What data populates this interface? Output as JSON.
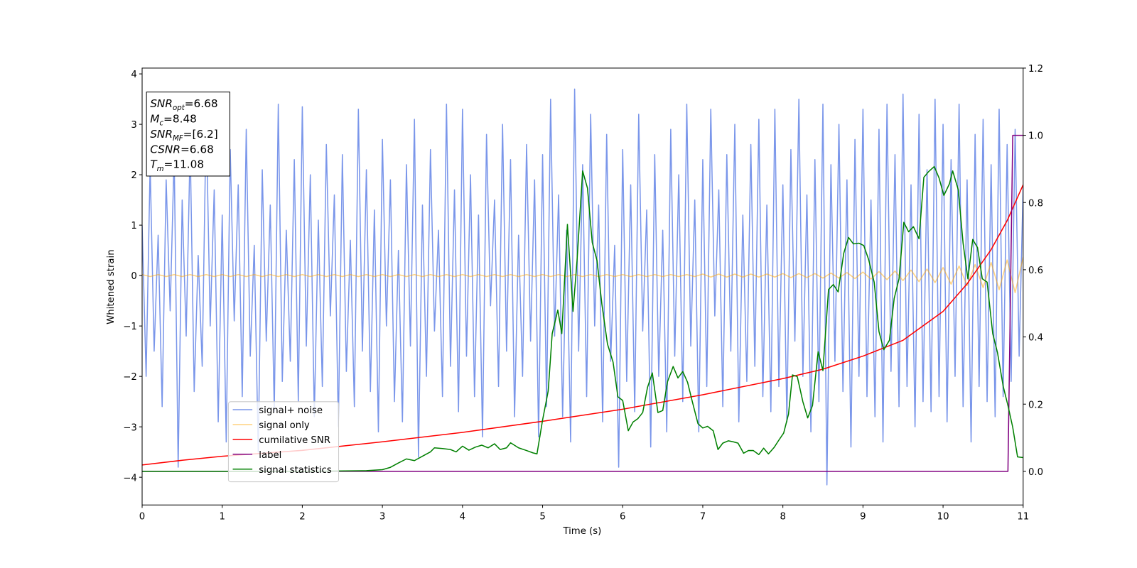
{
  "chart_data": {
    "type": "line",
    "xlabel": "Time (s)",
    "ylabel": "Whitened strain",
    "xlim": [
      0,
      11
    ],
    "ylim": [
      -4.55,
      4.115
    ],
    "y2lim": [
      -0.1,
      1.2
    ],
    "xticks": [
      0,
      1,
      2,
      3,
      4,
      5,
      6,
      7,
      8,
      9,
      10,
      11
    ],
    "yticks": [
      {
        "value": -4,
        "label": "−4"
      },
      {
        "value": -3,
        "label": "−3"
      },
      {
        "value": -2,
        "label": "−2"
      },
      {
        "value": -1,
        "label": "−1"
      },
      0,
      1,
      2,
      3,
      4
    ],
    "y2ticks": [
      {
        "value": 0,
        "label": "0.0"
      },
      0.2,
      0.4,
      0.6,
      0.8,
      {
        "value": 1,
        "label": "1.0"
      },
      1.2
    ],
    "legend": "lower left",
    "annotation": [
      {
        "symbol": "SNR",
        "subscript": "opt",
        "text": "=6.68"
      },
      {
        "symbol": "M",
        "subscript": "c",
        "text": "=8.48"
      },
      {
        "symbol": "SNR",
        "subscript": "MF",
        "text": "=[6.2]"
      },
      {
        "symbol": "CSNR",
        "subscript": "",
        "text": "=6.68"
      },
      {
        "symbol": "T",
        "subscript": "m",
        "text": "=11.08"
      }
    ],
    "series": [
      {
        "name": "signal+ noise",
        "color": "#4169e1",
        "opacity": 0.7,
        "x": [
          0,
          0.05,
          0.1,
          0.15,
          0.2,
          0.25,
          0.3,
          0.35,
          0.4,
          0.45,
          0.5,
          0.55,
          0.6,
          0.65,
          0.7,
          0.75,
          0.8,
          0.85,
          0.9,
          0.95,
          1,
          1.05,
          1.1,
          1.15,
          1.2,
          1.25,
          1.3,
          1.35,
          1.4,
          1.45,
          1.5,
          1.55,
          1.6,
          1.65,
          1.7,
          1.75,
          1.8,
          1.85,
          1.9,
          1.95,
          2,
          2.05,
          2.1,
          2.15,
          2.2,
          2.25,
          2.3,
          2.35,
          2.4,
          2.45,
          2.5,
          2.55,
          2.6,
          2.65,
          2.7,
          2.75,
          2.8,
          2.85,
          2.9,
          2.95,
          3,
          3.05,
          3.1,
          3.15,
          3.2,
          3.25,
          3.3,
          3.35,
          3.4,
          3.45,
          3.5,
          3.55,
          3.6,
          3.65,
          3.7,
          3.75,
          3.8,
          3.85,
          3.9,
          3.95,
          4,
          4.05,
          4.1,
          4.15,
          4.2,
          4.25,
          4.3,
          4.35,
          4.4,
          4.45,
          4.5,
          4.55,
          4.6,
          4.65,
          4.7,
          4.75,
          4.8,
          4.85,
          4.9,
          4.95,
          5,
          5.05,
          5.1,
          5.15,
          5.2,
          5.25,
          5.3,
          5.35,
          5.4,
          5.45,
          5.5,
          5.55,
          5.6,
          5.65,
          5.7,
          5.75,
          5.8,
          5.85,
          5.9,
          5.95,
          6,
          6.05,
          6.1,
          6.15,
          6.2,
          6.25,
          6.3,
          6.35,
          6.4,
          6.45,
          6.5,
          6.55,
          6.6,
          6.65,
          6.7,
          6.75,
          6.8,
          6.85,
          6.9,
          6.95,
          7,
          7.05,
          7.1,
          7.15,
          7.2,
          7.25,
          7.3,
          7.35,
          7.4,
          7.45,
          7.5,
          7.55,
          7.6,
          7.65,
          7.7,
          7.75,
          7.8,
          7.85,
          7.9,
          7.95,
          8,
          8.05,
          8.1,
          8.15,
          8.2,
          8.25,
          8.3,
          8.35,
          8.4,
          8.45,
          8.5,
          8.55,
          8.6,
          8.65,
          8.7,
          8.75,
          8.8,
          8.85,
          8.9,
          8.95,
          9,
          9.05,
          9.1,
          9.15,
          9.2,
          9.25,
          9.3,
          9.35,
          9.4,
          9.45,
          9.5,
          9.55,
          9.6,
          9.65,
          9.7,
          9.75,
          9.8,
          9.85,
          9.9,
          9.95,
          10,
          10.05,
          10.1,
          10.15,
          10.2,
          10.25,
          10.3,
          10.35,
          10.4,
          10.45,
          10.5,
          10.55,
          10.6,
          10.65,
          10.7,
          10.75,
          10.8,
          10.85,
          10.9,
          10.95,
          11
        ],
        "values": [
          1.0,
          -2.0,
          2.2,
          -1.5,
          0.8,
          -2.6,
          1.9,
          -0.7,
          2.4,
          -3.8,
          1.5,
          -1.2,
          2.6,
          -2.3,
          0.4,
          -1.8,
          3.2,
          -1.0,
          1.7,
          -2.9,
          1.2,
          -3.3,
          2.5,
          -0.9,
          1.8,
          -2.4,
          2.9,
          -1.6,
          0.6,
          -3.5,
          2.1,
          -1.3,
          1.4,
          -2.7,
          3.4,
          -2.1,
          0.9,
          -1.7,
          2.3,
          -2.5,
          3.35,
          -1.4,
          2.0,
          -2.8,
          1.1,
          -2.2,
          2.6,
          -0.8,
          1.6,
          -3.0,
          2.4,
          -1.9,
          0.7,
          -2.6,
          3.3,
          -1.5,
          2.1,
          -2.3,
          1.3,
          -3.1,
          2.7,
          -1.0,
          1.9,
          -2.5,
          0.5,
          -2.9,
          2.2,
          -1.4,
          3.1,
          -3.6,
          1.4,
          -2.0,
          2.5,
          -1.1,
          0.9,
          -2.4,
          3.4,
          -1.8,
          1.7,
          -2.7,
          3.3,
          -1.6,
          2.0,
          -2.4,
          1.2,
          -3.2,
          2.8,
          -0.6,
          1.5,
          -2.2,
          3.0,
          -1.5,
          2.3,
          -2.8,
          0.8,
          -2.0,
          2.6,
          -1.3,
          1.9,
          -3.2,
          2.4,
          -2.6,
          3.5,
          -1.2,
          1.6,
          -2.8,
          0.9,
          -3.3,
          3.7,
          -1.5,
          2.2,
          -2.4,
          3.2,
          -1.0,
          1.4,
          -2.9,
          2.8,
          -1.7,
          0.6,
          -3.8,
          2.5,
          -2.1,
          1.8,
          -2.7,
          3.2,
          -1.1,
          1.3,
          -3.4,
          2.4,
          -2.0,
          0.9,
          -3.1,
          2.9,
          -1.6,
          2.0,
          -2.5,
          3.4,
          -1.4,
          1.5,
          -3.1,
          2.3,
          -2.2,
          3.3,
          -0.8,
          1.7,
          -2.6,
          2.4,
          -1.5,
          3.0,
          -2.9,
          1.2,
          -2.1,
          2.6,
          -1.8,
          3.1,
          -2.4,
          1.4,
          -2.7,
          3.3,
          -2.2,
          1.8,
          -2.9,
          2.5,
          -1.3,
          3.5,
          -2.0,
          1.6,
          -3.1,
          2.3,
          -2.5,
          3.4,
          -4.15,
          2.2,
          -1.7,
          3.0,
          -2.3,
          1.9,
          -3.4,
          2.7,
          -2.0,
          3.3,
          -2.4,
          1.5,
          -2.8,
          2.9,
          -3.3,
          3.4,
          -1.9,
          2.4,
          -2.6,
          3.6,
          -2.2,
          1.8,
          -3.0,
          3.2,
          -2.5,
          2.1,
          -2.7,
          3.5,
          -2.4,
          3.0,
          -2.9,
          2.3,
          -2.0,
          3.4,
          -2.6,
          1.9,
          -3.3,
          2.8,
          -2.2,
          3.1,
          -2.5,
          2.2,
          -2.8,
          3.3,
          -2.4,
          2.6,
          -2.1,
          2.9,
          -1.6,
          1.8
        ]
      },
      {
        "name": "signal only",
        "color": "#ffa500",
        "opacity": 0.5,
        "x": [
          0,
          0.1,
          0.2,
          0.3,
          0.4,
          0.5,
          0.6,
          0.7,
          0.8,
          0.9,
          1,
          1.1,
          1.2,
          1.3,
          1.4,
          1.5,
          1.6,
          1.7,
          1.8,
          1.9,
          2,
          2.1,
          2.2,
          2.3,
          2.4,
          2.5,
          2.6,
          2.7,
          2.8,
          2.9,
          3,
          3.1,
          3.2,
          3.3,
          3.4,
          3.5,
          3.6,
          3.7,
          3.8,
          3.9,
          4,
          4.1,
          4.2,
          4.3,
          4.4,
          4.5,
          4.6,
          4.7,
          4.8,
          4.9,
          5,
          5.1,
          5.2,
          5.3,
          5.4,
          5.5,
          5.6,
          5.7,
          5.8,
          5.9,
          6,
          6.1,
          6.2,
          6.3,
          6.4,
          6.5,
          6.6,
          6.7,
          6.8,
          6.9,
          7,
          7.1,
          7.2,
          7.3,
          7.4,
          7.5,
          7.6,
          7.7,
          7.8,
          7.9,
          8,
          8.1,
          8.2,
          8.3,
          8.4,
          8.5,
          8.6,
          8.7,
          8.8,
          8.9,
          9,
          9.1,
          9.2,
          9.3,
          9.4,
          9.5,
          9.6,
          9.7,
          9.8,
          9.9,
          10,
          10.1,
          10.2,
          10.3,
          10.4,
          10.5,
          10.6,
          10.7,
          10.8,
          10.9,
          11
        ],
        "values": [
          0.02,
          -0.02,
          0.02,
          -0.02,
          0.02,
          -0.02,
          0.02,
          -0.02,
          0.02,
          -0.02,
          0.02,
          -0.02,
          0.02,
          -0.02,
          0.02,
          -0.02,
          0.02,
          -0.02,
          0.02,
          -0.02,
          0.02,
          -0.02,
          0.02,
          -0.02,
          0.02,
          -0.02,
          0.02,
          -0.02,
          0.02,
          -0.02,
          0.02,
          -0.02,
          0.02,
          -0.02,
          0.02,
          -0.02,
          0.02,
          -0.02,
          0.02,
          -0.02,
          0.02,
          -0.02,
          0.02,
          -0.02,
          0.02,
          -0.02,
          0.02,
          -0.02,
          0.02,
          -0.02,
          0.02,
          -0.02,
          0.02,
          -0.02,
          0.02,
          -0.02,
          0.02,
          -0.02,
          0.02,
          -0.02,
          0.02,
          -0.02,
          0.02,
          -0.02,
          0.02,
          -0.02,
          0.02,
          -0.02,
          0.02,
          -0.02,
          0.03,
          -0.03,
          0.03,
          -0.03,
          0.03,
          -0.03,
          0.03,
          -0.03,
          0.03,
          -0.03,
          0.04,
          -0.04,
          0.04,
          -0.04,
          0.04,
          -0.05,
          0.05,
          -0.05,
          0.06,
          -0.06,
          0.07,
          -0.07,
          0.08,
          -0.08,
          0.09,
          -0.1,
          0.11,
          -0.12,
          0.13,
          -0.14,
          0.16,
          -0.17,
          0.19,
          -0.2,
          0.22,
          -0.24,
          0.26,
          -0.28,
          0.31,
          -0.34,
          0.37
        ]
      },
      {
        "name": "cumilative SNR",
        "color": "#ff0000",
        "axis": "y2",
        "x": [
          0,
          0.5,
          1,
          2,
          3,
          4,
          5,
          6,
          7,
          8,
          8.5,
          9,
          9.5,
          10,
          10.3,
          10.6,
          10.8,
          11
        ],
        "values": [
          0.019,
          0.033,
          0.045,
          0.0625,
          0.088,
          0.116,
          0.149,
          0.185,
          0.228,
          0.276,
          0.304,
          0.343,
          0.39,
          0.476,
          0.558,
          0.66,
          0.746,
          0.853
        ]
      },
      {
        "name": "label",
        "color": "#800080",
        "axis": "y2",
        "x": [
          0,
          10.81,
          10.87,
          11
        ],
        "values": [
          0,
          0,
          1,
          1
        ]
      },
      {
        "name": "signal statistics",
        "color": "#008000",
        "axis": "y2",
        "x": [
          0,
          1,
          2,
          2.8,
          3,
          3.1,
          3.2,
          3.3,
          3.4,
          3.5,
          3.6,
          3.65,
          3.75,
          3.85,
          3.92,
          4,
          4.08,
          4.16,
          4.24,
          4.32,
          4.4,
          4.47,
          4.55,
          4.6,
          4.7,
          4.8,
          4.88,
          4.93,
          5,
          5.07,
          5.12,
          5.19,
          5.24,
          5.31,
          5.38,
          5.43,
          5.5,
          5.56,
          5.62,
          5.68,
          5.74,
          5.81,
          5.88,
          5.94,
          6,
          6.07,
          6.13,
          6.19,
          6.25,
          6.31,
          6.37,
          6.44,
          6.5,
          6.56,
          6.63,
          6.69,
          6.75,
          6.81,
          6.87,
          6.94,
          7,
          7.06,
          7.13,
          7.19,
          7.25,
          7.32,
          7.38,
          7.44,
          7.51,
          7.57,
          7.63,
          7.7,
          7.76,
          7.82,
          7.89,
          7.95,
          8.01,
          8.07,
          8.12,
          8.18,
          8.25,
          8.31,
          8.37,
          8.44,
          8.5,
          8.57,
          8.63,
          8.69,
          8.76,
          8.82,
          8.88,
          8.95,
          9.01,
          9.07,
          9.14,
          9.2,
          9.26,
          9.33,
          9.39,
          9.45,
          9.51,
          9.57,
          9.63,
          9.7,
          9.76,
          9.82,
          9.89,
          9.95,
          10.01,
          10.08,
          10.12,
          10.19,
          10.25,
          10.31,
          10.37,
          10.43,
          10.49,
          10.55,
          10.62,
          10.68,
          10.75,
          10.81,
          10.87,
          10.93,
          11
        ],
        "values": [
          0,
          0,
          0,
          0.002,
          0.005,
          0.012,
          0.025,
          0.037,
          0.032,
          0.045,
          0.058,
          0.07,
          0.068,
          0.065,
          0.058,
          0.075,
          0.063,
          0.072,
          0.078,
          0.07,
          0.082,
          0.065,
          0.07,
          0.085,
          0.07,
          0.062,
          0.055,
          0.052,
          0.153,
          0.239,
          0.41,
          0.48,
          0.41,
          0.735,
          0.476,
          0.627,
          0.894,
          0.843,
          0.681,
          0.627,
          0.498,
          0.379,
          0.325,
          0.222,
          0.211,
          0.121,
          0.147,
          0.157,
          0.175,
          0.25,
          0.293,
          0.175,
          0.181,
          0.267,
          0.312,
          0.278,
          0.297,
          0.265,
          0.207,
          0.142,
          0.129,
          0.134,
          0.121,
          0.065,
          0.084,
          0.091,
          0.088,
          0.084,
          0.054,
          0.062,
          0.062,
          0.05,
          0.069,
          0.052,
          0.071,
          0.093,
          0.114,
          0.17,
          0.287,
          0.282,
          0.207,
          0.159,
          0.196,
          0.356,
          0.3,
          0.541,
          0.556,
          0.534,
          0.649,
          0.696,
          0.677,
          0.679,
          0.672,
          0.631,
          0.563,
          0.416,
          0.362,
          0.39,
          0.515,
          0.573,
          0.741,
          0.713,
          0.728,
          0.692,
          0.875,
          0.892,
          0.907,
          0.873,
          0.821,
          0.856,
          0.894,
          0.838,
          0.679,
          0.573,
          0.69,
          0.666,
          0.573,
          0.563,
          0.41,
          0.353,
          0.254,
          0.196,
          0.131,
          0.043,
          0.041
        ]
      }
    ]
  }
}
